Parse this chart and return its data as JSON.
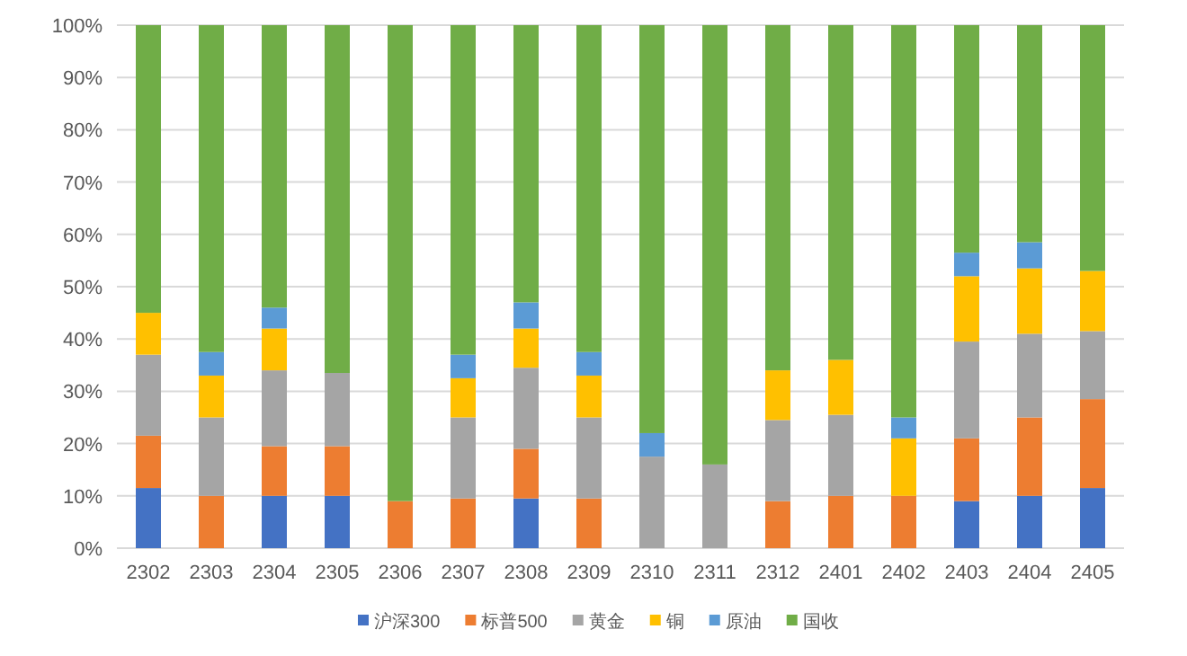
{
  "chart_data": {
    "type": "bar",
    "stacked": true,
    "grid": "y",
    "legend": "bottom",
    "categories": [
      "2302",
      "2303",
      "2304",
      "2305",
      "2306",
      "2307",
      "2308",
      "2309",
      "2310",
      "2311",
      "2312",
      "2401",
      "2402",
      "2403",
      "2404",
      "2405"
    ],
    "ylim": [
      0,
      100
    ],
    "yticks": [
      {
        "value": 0,
        "label": "0%"
      },
      {
        "value": 10,
        "label": "10%"
      },
      {
        "value": 20,
        "label": "20%"
      },
      {
        "value": 30,
        "label": "30%"
      },
      {
        "value": 40,
        "label": "40%"
      },
      {
        "value": 50,
        "label": "50%"
      },
      {
        "value": 60,
        "label": "60%"
      },
      {
        "value": 70,
        "label": "70%"
      },
      {
        "value": 80,
        "label": "80%"
      },
      {
        "value": 90,
        "label": "90%"
      },
      {
        "value": 100,
        "label": "100%"
      }
    ],
    "series": [
      {
        "name": "沪深300",
        "color": "#4472c4",
        "values": [
          11.5,
          null,
          10,
          10,
          null,
          null,
          9.5,
          null,
          null,
          null,
          null,
          null,
          null,
          9,
          10,
          11.5
        ]
      },
      {
        "name": "标普500",
        "color": "#ed7d31",
        "values": [
          10,
          10,
          9.5,
          9.5,
          9,
          9.5,
          9.5,
          9.5,
          null,
          null,
          9,
          10,
          10,
          12,
          15,
          17
        ]
      },
      {
        "name": "黄金",
        "color": "#a5a5a5",
        "values": [
          15.5,
          15,
          14.5,
          14,
          null,
          15.5,
          15.5,
          15.5,
          17.5,
          16,
          15.5,
          15.5,
          null,
          18.5,
          16,
          13
        ]
      },
      {
        "name": "铜",
        "color": "#ffc000",
        "values": [
          8,
          8,
          8,
          null,
          null,
          7.5,
          7.5,
          8,
          null,
          null,
          9.5,
          10.5,
          11,
          12.5,
          12.5,
          11.5
        ]
      },
      {
        "name": "原油",
        "color": "#5b9bd5",
        "values": [
          null,
          4.5,
          4,
          null,
          null,
          4.5,
          5,
          4.5,
          4.5,
          null,
          null,
          null,
          4,
          4.5,
          5,
          null
        ]
      },
      {
        "name": "国收",
        "color": "#70ad47",
        "values": [
          55,
          62.5,
          54,
          66.5,
          91,
          63,
          53,
          62.5,
          78,
          84,
          66,
          64,
          75,
          43.5,
          41.5,
          47
        ]
      }
    ]
  }
}
